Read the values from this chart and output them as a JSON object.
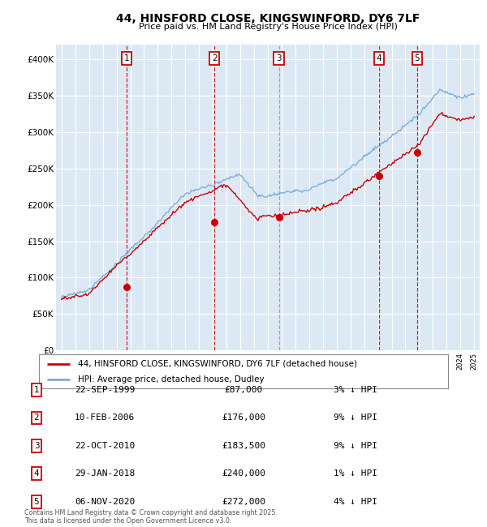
{
  "title": "44, HINSFORD CLOSE, KINGSWINFORD, DY6 7LF",
  "subtitle": "Price paid vs. HM Land Registry's House Price Index (HPI)",
  "plot_background": "#dce9f5",
  "ylim": [
    0,
    420000
  ],
  "yticks": [
    0,
    50000,
    100000,
    150000,
    200000,
    250000,
    300000,
    350000,
    400000
  ],
  "ytick_labels": [
    "£0",
    "£50K",
    "£100K",
    "£150K",
    "£200K",
    "£250K",
    "£300K",
    "£350K",
    "£400K"
  ],
  "xlim_start": 1994.6,
  "xlim_end": 2025.4,
  "sales": [
    {
      "label": "1",
      "year": 1999.72,
      "price": 87000,
      "date": "22-SEP-1999",
      "pct": "3%",
      "dir": "↓",
      "vline_color": "#cc0000",
      "vline_style": "--"
    },
    {
      "label": "2",
      "year": 2006.11,
      "price": 176000,
      "date": "10-FEB-2006",
      "pct": "9%",
      "dir": "↓",
      "vline_color": "#cc0000",
      "vline_style": "--"
    },
    {
      "label": "3",
      "year": 2010.81,
      "price": 183500,
      "date": "22-OCT-2010",
      "pct": "9%",
      "dir": "↓",
      "vline_color": "#999999",
      "vline_style": "--"
    },
    {
      "label": "4",
      "year": 2018.08,
      "price": 240000,
      "date": "29-JAN-2018",
      "pct": "1%",
      "dir": "↓",
      "vline_color": "#cc0000",
      "vline_style": "--"
    },
    {
      "label": "5",
      "year": 2020.85,
      "price": 272000,
      "date": "06-NOV-2020",
      "pct": "4%",
      "dir": "↓",
      "vline_color": "#cc0000",
      "vline_style": "--"
    }
  ],
  "legend_line1": "44, HINSFORD CLOSE, KINGSWINFORD, DY6 7LF (detached house)",
  "legend_line2": "HPI: Average price, detached house, Dudley",
  "footer": "Contains HM Land Registry data © Crown copyright and database right 2025.\nThis data is licensed under the Open Government Licence v3.0.",
  "hpi_color": "#7aaadd",
  "sale_color": "#cc0000",
  "grid_color": "#ffffff"
}
